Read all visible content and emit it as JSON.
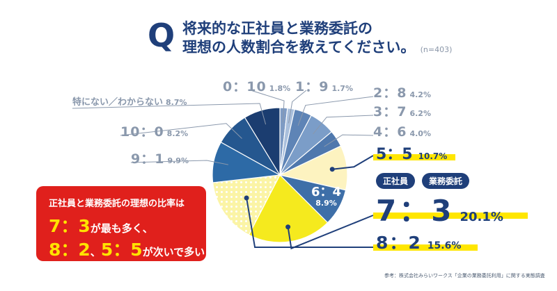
{
  "title": {
    "q": "Q",
    "line1": "将来的な正社員と業務委託の",
    "line2": "理想の人数割合を教えてください。",
    "n": "(n=403)"
  },
  "chart_data": {
    "type": "pie",
    "title": "将来的な正社員と業務委託の理想の人数割合を教えてください。",
    "legend_headers": [
      "正社員",
      "業務委託"
    ],
    "slices": [
      {
        "label": "0：10",
        "value": 1.8,
        "value_text": "1.8%",
        "color": "#7e9bc4"
      },
      {
        "label": "1：9",
        "value": 1.7,
        "value_text": "1.7%",
        "color": "#a9bfdc"
      },
      {
        "label": "2：8",
        "value": 4.2,
        "value_text": "4.2%",
        "color": "#5e84b6"
      },
      {
        "label": "3：7",
        "value": 6.2,
        "value_text": "6.2%",
        "color": "#7b9dc8"
      },
      {
        "label": "4：6",
        "value": 4.0,
        "value_text": "4.0%",
        "color": "#4f78ad"
      },
      {
        "label": "5：5",
        "value": 10.7,
        "value_text": "10.7%",
        "color": "#fdf3c0"
      },
      {
        "label": "6：4",
        "value": 8.9,
        "value_text": "8.9%",
        "color": "#3e6fa8"
      },
      {
        "label": "7：3",
        "value": 20.1,
        "value_text": "20.1%",
        "color": "#f5ea1e"
      },
      {
        "label": "8：2",
        "value": 15.6,
        "value_text": "15.6%",
        "color": "#fbf4a6"
      },
      {
        "label": "9：1",
        "value": 9.9,
        "value_text": "9.9%",
        "color": "#2d6aa6"
      },
      {
        "label": "10：0",
        "value": 8.2,
        "value_text": "8.2%",
        "color": "#25578f"
      },
      {
        "label": "特にない／わからない",
        "value": 8.7,
        "value_text": "8.7%",
        "color": "#1b3d70"
      }
    ]
  },
  "callout": {
    "line1": "正社員と業務委託の理想の比率は",
    "big1": "7：3",
    "line2_rest": "が最も多く、",
    "big2": "8：2",
    "sep": "、",
    "big3": "5：5",
    "line3_rest": "が次いで多い"
  },
  "highlight_colors": {
    "navy": "#1f3f7a",
    "yellow": "#ffe600",
    "red": "#e0201c",
    "gray": "#8a98ac"
  },
  "source": "参考：株式会社みらいワークス「企業の業務委託利用」に関する実態調査"
}
